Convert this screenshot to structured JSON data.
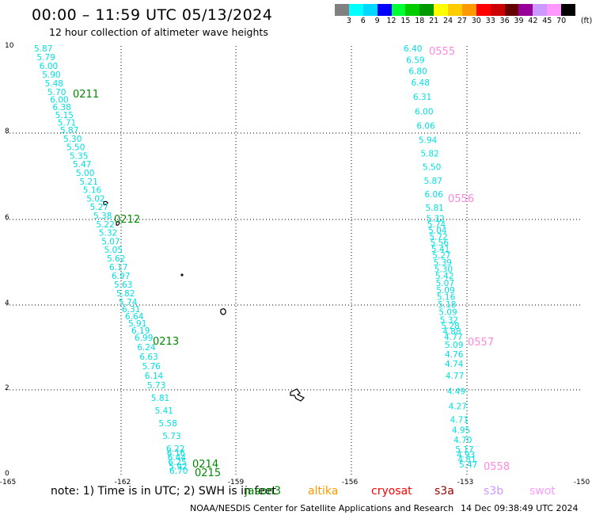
{
  "title": "00:00 – 11:59 UTC 05/13/2024",
  "subtitle": "12 hour collection of altimeter wave heights",
  "legend": {
    "colors": [
      "#808080",
      "#00ffff",
      "#00d8ff",
      "#0000ff",
      "#00ff33",
      "#00cc00",
      "#009900",
      "#ffff00",
      "#ffcc00",
      "#ff9900",
      "#ff0000",
      "#cc0000",
      "#660000",
      "#990099",
      "#cc99ff",
      "#ff99ff",
      "#000000"
    ],
    "labels": [
      "3",
      "6",
      "9",
      "12",
      "15",
      "18",
      "21",
      "24",
      "27",
      "30",
      "33",
      "36",
      "39",
      "42",
      "45",
      "70",
      "(ft)"
    ]
  },
  "axes": {
    "x_ticks": [
      "-165",
      "-162",
      "-159",
      "-156",
      "-153",
      "-150"
    ],
    "y_ticks": [
      "0",
      "2",
      "4",
      "6",
      "8",
      "10"
    ]
  },
  "tracks": {
    "west": {
      "color": "#00e0e0",
      "values": [
        "5.87",
        "5.79",
        "6.00",
        "5.90",
        "5.48",
        "5.70",
        "6.00",
        "6.38",
        "5.15",
        "5.71",
        "5.87",
        "5.30",
        "5.50",
        "5.35",
        "5.47",
        "5.00",
        "5.21",
        "5.16",
        "5.02",
        "5.27",
        "5.38",
        "5.22",
        "5.32",
        "5.07",
        "5.05",
        "5.62",
        "6.17",
        "6.97",
        "5.63",
        "5.82",
        "5.74",
        "6.31",
        "6.64",
        "5.91",
        "6.19",
        "6.99",
        "6.24",
        "6.63",
        "5.76",
        "6.14",
        "5.73",
        "5.81",
        "5.41",
        "5.58",
        "5.73",
        "6.22",
        "6.16",
        "6.44",
        "6.25",
        "5.92",
        "6.70"
      ]
    },
    "east": {
      "color": "#00e0e0",
      "values": [
        "6.40",
        "6.59",
        "6.80",
        "6.48",
        "6.31",
        "6.00",
        "6.06",
        "5.94",
        "5.82",
        "5.50",
        "5.87",
        "6.06",
        "5.81",
        "5.32",
        "5.74",
        "5.04",
        "5.72",
        "5.56",
        "5.41",
        "5.27",
        "5.39",
        "5.30",
        "5.42",
        "5.07",
        "5.09",
        "5.16",
        "5.18",
        "5.09",
        "5.32",
        "5.28",
        "4.88",
        "4.77",
        "5.09",
        "4.76",
        "4.74",
        "4.77",
        "4.49",
        "4.27",
        "4.71",
        "4.95",
        "4.70",
        "5.17",
        "4.93",
        "4.81",
        "5.47"
      ]
    }
  },
  "time_labels": [
    {
      "text": "0211",
      "color": "#008800"
    },
    {
      "text": "0212",
      "color": "#008800"
    },
    {
      "text": "0213",
      "color": "#008800"
    },
    {
      "text": "0214",
      "color": "#008800"
    },
    {
      "text": "0215",
      "color": "#008800"
    },
    {
      "text": "0555",
      "color": "#ff88dd"
    },
    {
      "text": "0556",
      "color": "#ff88dd"
    },
    {
      "text": "0557",
      "color": "#ff88dd"
    },
    {
      "text": "0558",
      "color": "#ff88dd"
    }
  ],
  "footer": {
    "note": "note:  1) Time is in UTC;  2) SWH is in feet",
    "satellites": [
      {
        "name": "jason3",
        "color": "#008800"
      },
      {
        "name": "altika",
        "color": "#ff9900"
      },
      {
        "name": "cryosat",
        "color": "#ff0000"
      },
      {
        "name": "s3a",
        "color": "#990000"
      },
      {
        "name": "s3b",
        "color": "#cc99ff"
      },
      {
        "name": "swot",
        "color": "#ff99ff"
      }
    ],
    "credit": "NOAA/NESDIS Center for Satellite Applications and Research",
    "stamp": "14 Dec 09:38:49 UTC 2024"
  }
}
